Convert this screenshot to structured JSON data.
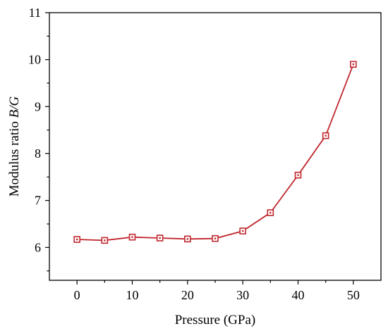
{
  "chart_data": {
    "type": "line",
    "title": "",
    "xlabel": "Pressure (GPa)",
    "ylabel_prefix": "Modulus ratio ",
    "ylabel_italic": "B/G",
    "xlim": [
      -5,
      55
    ],
    "ylim": [
      5.3,
      11
    ],
    "xticks": [
      0,
      10,
      20,
      30,
      40,
      50
    ],
    "yticks": [
      6,
      7,
      8,
      9,
      10,
      11
    ],
    "grid": false,
    "legend": "none",
    "color": "#c0272d",
    "series": [
      {
        "x": [
          0,
          5,
          10,
          15,
          20,
          25,
          30,
          35,
          40,
          45,
          50
        ],
        "y": [
          6.17,
          6.15,
          6.22,
          6.2,
          6.18,
          6.19,
          6.35,
          6.74,
          7.54,
          8.38,
          9.9
        ]
      }
    ]
  }
}
